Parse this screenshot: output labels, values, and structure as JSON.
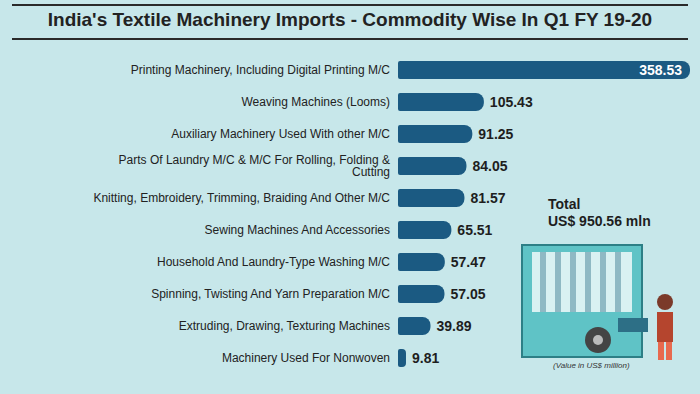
{
  "chart_data": {
    "type": "bar",
    "title": "India's Textile Machinery Imports - Commodity Wise In Q1 FY 19-20",
    "orientation": "horizontal",
    "categories": [
      "Printing Machinery, Including Digital Printing M/C",
      "Weaving Machines (Looms)",
      "Auxiliary Machinery Used With other M/C",
      "Parts Of Laundry M/C & M/C For Rolling, Folding & Cutting",
      "Knitting, Embroidery, Trimming, Braiding And Other M/C",
      "Sewing Machines And Accessories",
      "Household And Laundry-Type Washing M/C",
      "Spinning, Twisting And Yarn Preparation M/C",
      "Extruding, Drawing, Texturing Machines",
      "Machinery Used For Nonwoven"
    ],
    "values": [
      358.53,
      105.43,
      91.25,
      84.05,
      81.57,
      65.51,
      57.47,
      57.05,
      39.89,
      9.81
    ],
    "color": "#1b5a82",
    "data_labels": true,
    "tick_labels": "y",
    "annotations": [
      "Total",
      "US$ 950.56 mln",
      "(Value in US$ million)"
    ]
  }
}
